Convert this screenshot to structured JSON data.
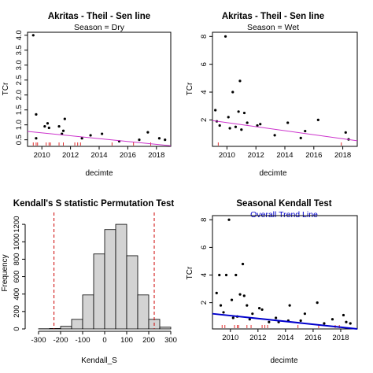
{
  "chart_data": [
    {
      "type": "scatter",
      "title": "Akritas - Theil - Sen line",
      "subtitle": "Season = Dry",
      "xlabel": "decimte",
      "ylabel": "TCr",
      "xlim": [
        2009,
        2019
      ],
      "ylim": [
        0.28,
        4.1
      ],
      "xticks": [
        2010,
        2012,
        2014,
        2016,
        2018
      ],
      "yticks": [
        0.5,
        1.0,
        1.5,
        2.0,
        2.5,
        3.0,
        3.5,
        4.0
      ],
      "points": [
        {
          "x": 2009.4,
          "y": 4.0
        },
        {
          "x": 2009.6,
          "y": 1.35
        },
        {
          "x": 2009.6,
          "y": 0.55
        },
        {
          "x": 2010.2,
          "y": 0.95
        },
        {
          "x": 2010.4,
          "y": 1.05
        },
        {
          "x": 2010.5,
          "y": 0.9
        },
        {
          "x": 2011.2,
          "y": 0.95
        },
        {
          "x": 2011.5,
          "y": 0.8
        },
        {
          "x": 2011.6,
          "y": 1.2
        },
        {
          "x": 2011.4,
          "y": 0.7
        },
        {
          "x": 2012.8,
          "y": 0.55
        },
        {
          "x": 2013.4,
          "y": 0.65
        },
        {
          "x": 2014.2,
          "y": 0.7
        },
        {
          "x": 2015.4,
          "y": 0.45
        },
        {
          "x": 2016.8,
          "y": 0.5
        },
        {
          "x": 2017.4,
          "y": 0.75
        },
        {
          "x": 2018.2,
          "y": 0.55
        },
        {
          "x": 2018.6,
          "y": 0.5
        }
      ],
      "censored_x": [
        2009.4,
        2009.6,
        2009.7,
        2010.3,
        2010.5,
        2010.6,
        2011.2,
        2011.5,
        2012.3,
        2012.5,
        2012.7,
        2014.9,
        2016.4,
        2017.6
      ],
      "trend_line": {
        "x": [
          2009,
          2019
        ],
        "y": [
          0.78,
          0.3
        ],
        "color": "#cc33cc"
      }
    },
    {
      "type": "scatter",
      "title": "Akritas - Theil - Sen line",
      "subtitle": "Season = Wet",
      "xlabel": "decimte",
      "ylabel": "TCr",
      "xlim": [
        2009,
        2019
      ],
      "ylim": [
        0.1,
        8.3
      ],
      "xticks": [
        2010,
        2012,
        2014,
        2016,
        2018
      ],
      "yticks": [
        2,
        4,
        6,
        8
      ],
      "points": [
        {
          "x": 2009.2,
          "y": 2.7
        },
        {
          "x": 2009.3,
          "y": 1.9
        },
        {
          "x": 2009.5,
          "y": 1.6
        },
        {
          "x": 2009.9,
          "y": 8.0
        },
        {
          "x": 2010.1,
          "y": 2.2
        },
        {
          "x": 2010.2,
          "y": 1.4
        },
        {
          "x": 2010.4,
          "y": 4.0
        },
        {
          "x": 2010.6,
          "y": 1.5
        },
        {
          "x": 2010.8,
          "y": 2.6
        },
        {
          "x": 2010.9,
          "y": 4.8
        },
        {
          "x": 2011.0,
          "y": 1.3
        },
        {
          "x": 2011.2,
          "y": 2.5
        },
        {
          "x": 2011.4,
          "y": 1.8
        },
        {
          "x": 2012.1,
          "y": 1.6
        },
        {
          "x": 2012.3,
          "y": 1.7
        },
        {
          "x": 2013.3,
          "y": 0.9
        },
        {
          "x": 2014.2,
          "y": 1.8
        },
        {
          "x": 2015.1,
          "y": 0.7
        },
        {
          "x": 2015.4,
          "y": 1.2
        },
        {
          "x": 2016.3,
          "y": 2.0
        },
        {
          "x": 2018.2,
          "y": 1.1
        },
        {
          "x": 2018.4,
          "y": 0.6
        }
      ],
      "censored_x": [
        2009.4,
        2017.9
      ],
      "trend_line": {
        "x": [
          2009,
          2019
        ],
        "y": [
          1.95,
          0.5
        ],
        "color": "#cc33cc"
      }
    },
    {
      "type": "bar",
      "title": "Kendall's S statistic Permutation Test",
      "xlabel": "Kendall_S",
      "ylabel": "Frequency",
      "xlim": [
        -350,
        300
      ],
      "ylim": [
        0,
        1300
      ],
      "xticks": [
        -300,
        -200,
        -100,
        0,
        100,
        200,
        300
      ],
      "yticks": [
        0,
        200,
        400,
        600,
        800,
        1000,
        1200
      ],
      "bins": [
        {
          "from": -300,
          "to": -250,
          "count": 2
        },
        {
          "from": -250,
          "to": -200,
          "count": 5
        },
        {
          "from": -200,
          "to": -150,
          "count": 30
        },
        {
          "from": -150,
          "to": -100,
          "count": 110
        },
        {
          "from": -100,
          "to": -50,
          "count": 390
        },
        {
          "from": -50,
          "to": 0,
          "count": 860
        },
        {
          "from": 0,
          "to": 50,
          "count": 1140
        },
        {
          "from": 50,
          "to": 100,
          "count": 1200
        },
        {
          "from": 100,
          "to": 150,
          "count": 840
        },
        {
          "from": 150,
          "to": 200,
          "count": 390
        },
        {
          "from": 200,
          "to": 250,
          "count": 110
        },
        {
          "from": 250,
          "to": 300,
          "count": 20
        }
      ],
      "reference_lines": [
        -230,
        225
      ],
      "reference_color": "#cc0000"
    },
    {
      "type": "scatter",
      "title": "Seasonal Kendall Test",
      "subtitle": "Overall Trend Line",
      "subtitle_color": "#0000cc",
      "xlabel": "decimte",
      "ylabel": "TCr",
      "xlim": [
        2008.7,
        2019.2
      ],
      "ylim": [
        0.1,
        8.3
      ],
      "xticks": [
        2010,
        2012,
        2014,
        2016,
        2018
      ],
      "yticks": [
        2,
        4,
        6,
        8
      ],
      "points": [
        {
          "x": 2009.0,
          "y": 2.7
        },
        {
          "x": 2009.2,
          "y": 4.0
        },
        {
          "x": 2009.3,
          "y": 1.8
        },
        {
          "x": 2009.5,
          "y": 1.3
        },
        {
          "x": 2009.7,
          "y": 4.0
        },
        {
          "x": 2009.9,
          "y": 8.0
        },
        {
          "x": 2010.1,
          "y": 2.2
        },
        {
          "x": 2010.2,
          "y": 0.9
        },
        {
          "x": 2010.4,
          "y": 4.0
        },
        {
          "x": 2010.5,
          "y": 1.0
        },
        {
          "x": 2010.7,
          "y": 2.6
        },
        {
          "x": 2010.9,
          "y": 4.8
        },
        {
          "x": 2011.0,
          "y": 2.5
        },
        {
          "x": 2011.2,
          "y": 1.8
        },
        {
          "x": 2011.4,
          "y": 0.8
        },
        {
          "x": 2011.6,
          "y": 1.2
        },
        {
          "x": 2012.1,
          "y": 1.6
        },
        {
          "x": 2012.3,
          "y": 1.5
        },
        {
          "x": 2012.8,
          "y": 0.6
        },
        {
          "x": 2013.3,
          "y": 0.9
        },
        {
          "x": 2013.5,
          "y": 0.6
        },
        {
          "x": 2014.2,
          "y": 0.7
        },
        {
          "x": 2014.3,
          "y": 1.8
        },
        {
          "x": 2015.1,
          "y": 0.7
        },
        {
          "x": 2015.4,
          "y": 1.2
        },
        {
          "x": 2016.3,
          "y": 2.0
        },
        {
          "x": 2016.8,
          "y": 0.5
        },
        {
          "x": 2017.4,
          "y": 0.8
        },
        {
          "x": 2018.2,
          "y": 1.1
        },
        {
          "x": 2018.4,
          "y": 0.6
        },
        {
          "x": 2018.7,
          "y": 0.5
        }
      ],
      "censored_x": [
        2009.4,
        2009.6,
        2010.3,
        2010.5,
        2010.6,
        2011.2,
        2011.5,
        2012.3,
        2012.5,
        2012.7,
        2014.9,
        2016.4,
        2017.6,
        2017.9
      ],
      "trend_line": {
        "x": [
          2008.7,
          2019.2
        ],
        "y": [
          1.2,
          0.1
        ],
        "color": "#0000cc"
      }
    }
  ]
}
